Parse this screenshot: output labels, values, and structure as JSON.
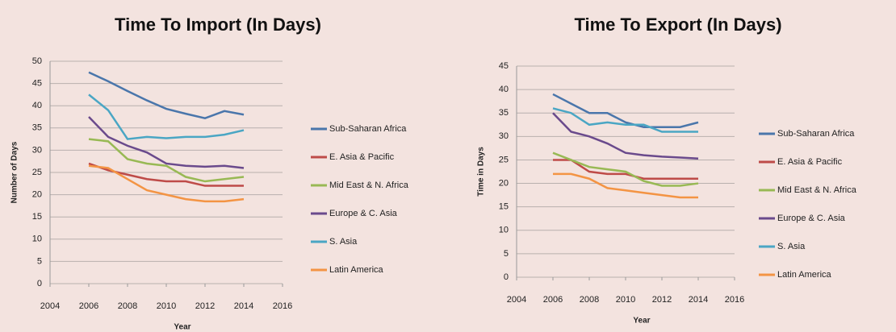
{
  "chart_data": [
    {
      "type": "line",
      "title": "Time To Import (In Days)",
      "x_label": "Year",
      "y_label": "Number of Days",
      "x": [
        2006,
        2007,
        2008,
        2009,
        2010,
        2011,
        2012,
        2013,
        2014
      ],
      "xlim": [
        2004,
        2016
      ],
      "xticks": [
        2004,
        2006,
        2008,
        2010,
        2012,
        2014,
        2016
      ],
      "ylim": [
        0,
        50
      ],
      "yticks": [
        0,
        5,
        10,
        15,
        20,
        25,
        30,
        35,
        40,
        45,
        50
      ],
      "grid": true,
      "legend": "right",
      "series": [
        {
          "name": "Sub-Saharan Africa",
          "color": "#4a76ab",
          "values": [
            47.5,
            45.5,
            43.3,
            41.2,
            39.3,
            38.2,
            37.2,
            38.8,
            38
          ]
        },
        {
          "name": "E. Asia & Pacific",
          "color": "#be4b48",
          "values": [
            27,
            25.5,
            24.5,
            23.5,
            23,
            23,
            22,
            22,
            22
          ]
        },
        {
          "name": "Mid East & N. Africa",
          "color": "#98b954",
          "values": [
            32.5,
            32,
            28,
            27,
            26.5,
            24,
            23,
            23.5,
            24
          ]
        },
        {
          "name": "Europe & C. Asia",
          "color": "#6a4a8c",
          "values": [
            37.5,
            33,
            31,
            29.5,
            27,
            26.5,
            26.3,
            26.5,
            26
          ]
        },
        {
          "name": "S. Asia",
          "color": "#4aa6c4",
          "values": [
            42.5,
            39,
            32.5,
            33,
            32.7,
            33,
            33,
            33.5,
            34.5
          ]
        },
        {
          "name": "Latin America",
          "color": "#f39444",
          "values": [
            26.5,
            26,
            23.5,
            21,
            20,
            19,
            18.5,
            18.5,
            19
          ]
        }
      ]
    },
    {
      "type": "line",
      "title": "Time To Export (In Days)",
      "x_label": "Year",
      "y_label": "Time in Days",
      "x": [
        2006,
        2007,
        2008,
        2009,
        2010,
        2011,
        2012,
        2013,
        2014
      ],
      "xlim": [
        2004,
        2016
      ],
      "xticks": [
        2004,
        2006,
        2008,
        2010,
        2012,
        2014,
        2016
      ],
      "ylim": [
        0,
        45
      ],
      "yticks": [
        0,
        5,
        10,
        15,
        20,
        25,
        30,
        35,
        40,
        45
      ],
      "grid": true,
      "legend": "right",
      "series": [
        {
          "name": "Sub-Saharan Africa",
          "color": "#4a76ab",
          "values": [
            39,
            37,
            35,
            35,
            33,
            32,
            32,
            32,
            33
          ]
        },
        {
          "name": "E. Asia & Pacific",
          "color": "#be4b48",
          "values": [
            25,
            25,
            22.5,
            22,
            22,
            21,
            21,
            21,
            21
          ]
        },
        {
          "name": "Mid East & N. Africa",
          "color": "#98b954",
          "values": [
            26.5,
            25,
            23.5,
            23,
            22.5,
            20.5,
            19.5,
            19.5,
            20
          ]
        },
        {
          "name": "Europe & C. Asia",
          "color": "#6a4a8c",
          "values": [
            35,
            31,
            30,
            28.5,
            26.5,
            26,
            25.7,
            25.5,
            25.3
          ]
        },
        {
          "name": "S. Asia",
          "color": "#4aa6c4",
          "values": [
            36,
            35,
            32.5,
            33,
            32.5,
            32.5,
            31,
            31,
            31
          ]
        },
        {
          "name": "Latin America",
          "color": "#f39444",
          "values": [
            22,
            22,
            21,
            19,
            18.5,
            18,
            17.5,
            17,
            17
          ]
        }
      ]
    }
  ]
}
